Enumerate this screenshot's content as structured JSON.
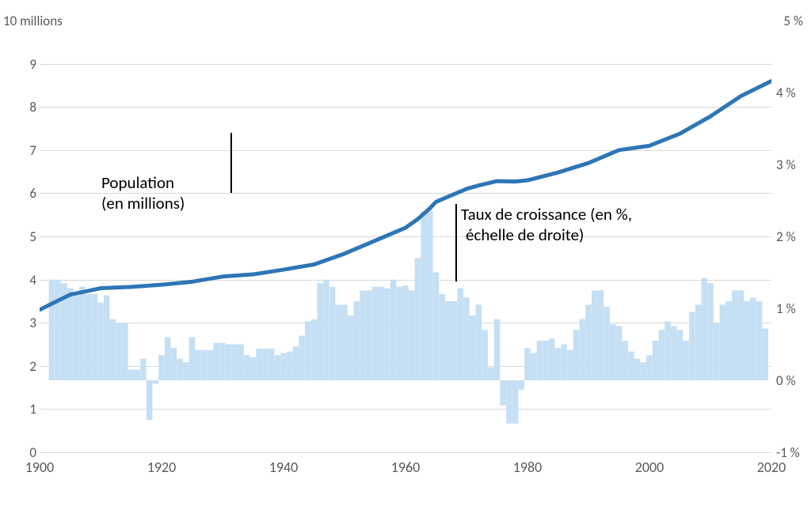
{
  "chart": {
    "type": "combo-bar-line",
    "background_color": "#ffffff",
    "grid_color": "#d9d9d9",
    "axis_color": "#a6a6a6",
    "text_color": "#595959",
    "left_axis": {
      "title": "10 millions",
      "min": 0,
      "max": 10,
      "ticks": [
        0,
        1,
        2,
        3,
        4,
        5,
        6,
        7,
        8,
        9
      ]
    },
    "right_axis": {
      "title": "5 %",
      "min": -1,
      "max": 5,
      "ticks": [
        -1,
        0,
        1,
        2,
        3,
        4
      ],
      "suffix": " %"
    },
    "x_axis": {
      "min": 1900,
      "max": 2020,
      "ticks": [
        1900,
        1920,
        1940,
        1960,
        1980,
        2000,
        2020
      ]
    },
    "line_series": {
      "name": "Population (en millions)",
      "color": "#2e75b6",
      "width": 5,
      "years": [
        1900,
        1905,
        1910,
        1915,
        1920,
        1925,
        1930,
        1935,
        1940,
        1945,
        1950,
        1955,
        1960,
        1962,
        1964,
        1965,
        1970,
        1972,
        1975,
        1978,
        1980,
        1985,
        1990,
        1995,
        2000,
        2005,
        2010,
        2015,
        2020
      ],
      "values": [
        3.3,
        3.65,
        3.8,
        3.83,
        3.88,
        3.95,
        4.07,
        4.12,
        4.23,
        4.35,
        4.6,
        4.9,
        5.2,
        5.4,
        5.65,
        5.8,
        6.1,
        6.18,
        6.28,
        6.27,
        6.3,
        6.48,
        6.7,
        7.0,
        7.1,
        7.38,
        7.78,
        8.25,
        8.6
      ]
    },
    "bar_series": {
      "name": "Taux de croissance (en %, échelle de droite)",
      "color": "#c5dff4",
      "years": [
        1902,
        1903,
        1904,
        1905,
        1906,
        1907,
        1908,
        1909,
        1910,
        1911,
        1912,
        1913,
        1914,
        1915,
        1916,
        1917,
        1918,
        1919,
        1920,
        1921,
        1922,
        1923,
        1924,
        1925,
        1926,
        1927,
        1928,
        1929,
        1930,
        1931,
        1932,
        1933,
        1934,
        1935,
        1936,
        1937,
        1938,
        1939,
        1940,
        1941,
        1942,
        1943,
        1944,
        1945,
        1946,
        1947,
        1948,
        1949,
        1950,
        1951,
        1952,
        1953,
        1954,
        1955,
        1956,
        1957,
        1958,
        1959,
        1960,
        1961,
        1962,
        1963,
        1964,
        1965,
        1966,
        1967,
        1968,
        1969,
        1970,
        1971,
        1972,
        1973,
        1974,
        1975,
        1976,
        1977,
        1978,
        1979,
        1980,
        1981,
        1982,
        1983,
        1984,
        1985,
        1986,
        1987,
        1988,
        1989,
        1990,
        1991,
        1992,
        1993,
        1994,
        1995,
        1996,
        1997,
        1998,
        1999,
        2000,
        2001,
        2002,
        2003,
        2004,
        2005,
        2006,
        2007,
        2008,
        2009,
        2010,
        2011,
        2012,
        2013,
        2014,
        2015,
        2016,
        2017,
        2018,
        2019
      ],
      "values": [
        1.4,
        1.4,
        1.35,
        1.28,
        1.18,
        1.3,
        1.2,
        1.2,
        1.08,
        1.18,
        0.85,
        0.8,
        0.8,
        0.15,
        0.15,
        0.3,
        -0.55,
        -0.05,
        0.35,
        0.6,
        0.45,
        0.3,
        0.25,
        0.6,
        0.42,
        0.42,
        0.42,
        0.52,
        0.52,
        0.5,
        0.5,
        0.5,
        0.35,
        0.32,
        0.44,
        0.44,
        0.44,
        0.35,
        0.38,
        0.4,
        0.47,
        0.62,
        0.82,
        0.85,
        1.35,
        1.4,
        1.3,
        1.05,
        1.05,
        0.9,
        1.1,
        1.25,
        1.25,
        1.3,
        1.3,
        1.28,
        1.4,
        1.3,
        1.32,
        1.25,
        1.7,
        2.35,
        2.35,
        1.5,
        1.2,
        1.1,
        1.1,
        1.28,
        1.15,
        0.9,
        1.05,
        0.7,
        0.18,
        0.85,
        -0.35,
        -0.6,
        -0.6,
        -0.13,
        0.45,
        0.38,
        0.55,
        0.55,
        0.58,
        0.45,
        0.5,
        0.42,
        0.7,
        0.85,
        1.05,
        1.25,
        1.25,
        1.02,
        0.78,
        0.75,
        0.55,
        0.4,
        0.3,
        0.25,
        0.35,
        0.55,
        0.7,
        0.82,
        0.75,
        0.7,
        0.55,
        0.95,
        1.05,
        1.42,
        1.35,
        0.8,
        1.05,
        1.1,
        1.25,
        1.25,
        1.1,
        1.15,
        1.1,
        0.72
      ]
    },
    "annotations": {
      "population": {
        "label1": "Population",
        "label2": "(en millions)"
      },
      "growth": {
        "label1": "Taux de croissance (en %,",
        "label2": "échelle de droite)"
      }
    }
  }
}
